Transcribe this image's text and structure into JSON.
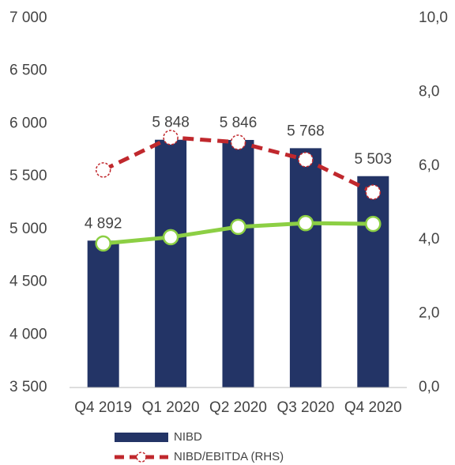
{
  "chart_data": {
    "type": "bar",
    "categories": [
      "Q4 2019",
      "Q1 2020",
      "Q2 2020",
      "Q3 2020",
      "Q4 2020"
    ],
    "series": [
      {
        "name": "NIBD",
        "type": "bar",
        "color": "#233466",
        "values": [
          4892,
          5848,
          5846,
          5768,
          5503
        ],
        "value_labels": [
          "4 892",
          "5 848",
          "5 846",
          "5 768",
          "5 503"
        ]
      },
      {
        "name": "NIBD/EBITDA (RHS)",
        "type": "line",
        "axis": "y2",
        "color": "#c0282d",
        "dashed": true,
        "values": [
          5.89,
          6.77,
          6.64,
          6.17,
          5.29
        ]
      },
      {
        "type": "line",
        "axis": "y2",
        "color": "#8ccf44",
        "values": [
          3.9,
          4.07,
          4.35,
          4.45,
          4.43
        ]
      }
    ],
    "ylim": [
      3500,
      7000
    ],
    "yticks": [
      {
        "value": 3500,
        "label": "3 500"
      },
      {
        "value": 4000,
        "label": "4 000"
      },
      {
        "value": 4500,
        "label": "4 500"
      },
      {
        "value": 5000,
        "label": "5 000"
      },
      {
        "value": 5500,
        "label": "5 500"
      },
      {
        "value": 6000,
        "label": "6 000"
      },
      {
        "value": 6500,
        "label": "6 500"
      },
      {
        "value": 7000,
        "label": "7 000"
      }
    ],
    "y2lim": [
      0,
      10
    ],
    "y2ticks": [
      {
        "value": 0,
        "label": "0,0"
      },
      {
        "value": 2,
        "label": "2,0"
      },
      {
        "value": 4,
        "label": "4,0"
      },
      {
        "value": 6,
        "label": "6,0"
      },
      {
        "value": 8,
        "label": "8,0"
      },
      {
        "value": 10,
        "label": "10,0"
      }
    ],
    "grid": false,
    "legend": "bottom"
  }
}
